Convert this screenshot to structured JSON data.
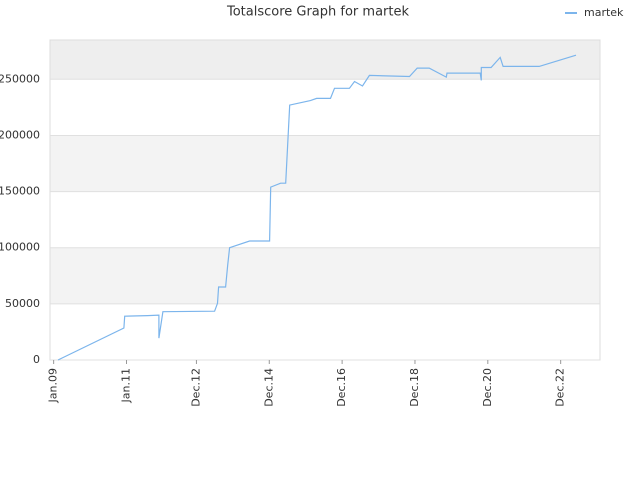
{
  "chart_data": {
    "type": "line",
    "title": "Totalscore Graph for martek",
    "legend": "upper right",
    "grid": true,
    "xlim": [
      2008.9,
      2024.0
    ],
    "xticks": [
      {
        "value": 2009.0,
        "label": "Jan.09"
      },
      {
        "value": 2011.0,
        "label": "Jan.11"
      },
      {
        "value": 2012.92,
        "label": "Dec.12"
      },
      {
        "value": 2014.92,
        "label": "Dec.14"
      },
      {
        "value": 2016.92,
        "label": "Dec.16"
      },
      {
        "value": 2018.92,
        "label": "Dec.18"
      },
      {
        "value": 2020.92,
        "label": "Dec.20"
      },
      {
        "value": 2022.92,
        "label": "Dec.22"
      }
    ],
    "ylim": [
      0,
      285000
    ],
    "yticks": [
      0,
      50000,
      100000,
      150000,
      200000,
      250000
    ],
    "series": [
      {
        "name": "martek",
        "color": "#7cb5ec",
        "x": [
          2009.12,
          2010.93,
          2010.95,
          2011.58,
          2011.89,
          2011.89,
          2012.0,
          2013.42,
          2013.5,
          2013.53,
          2013.72,
          2013.78,
          2013.83,
          2014.38,
          2014.93,
          2014.96,
          2015.23,
          2015.37,
          2015.48,
          2016.05,
          2016.22,
          2016.6,
          2016.71,
          2017.12,
          2017.26,
          2017.48,
          2017.67,
          2018.77,
          2018.98,
          2019.31,
          2019.78,
          2019.8,
          2020.71,
          2020.74,
          2020.74,
          2021.01,
          2021.26,
          2021.34,
          2021.78,
          2022.33,
          2023.34
        ],
        "values": [
          0,
          28500,
          39000,
          39500,
          40000,
          19500,
          43000,
          43500,
          50500,
          65000,
          65000,
          84500,
          100000,
          106000,
          106000,
          154000,
          157500,
          157500,
          227000,
          231000,
          233000,
          233000,
          242000,
          242000,
          248000,
          244000,
          253500,
          252500,
          260000,
          260000,
          252000,
          255500,
          255500,
          249000,
          260500,
          260500,
          269500,
          261500,
          261500,
          261500,
          271500
        ]
      }
    ]
  }
}
